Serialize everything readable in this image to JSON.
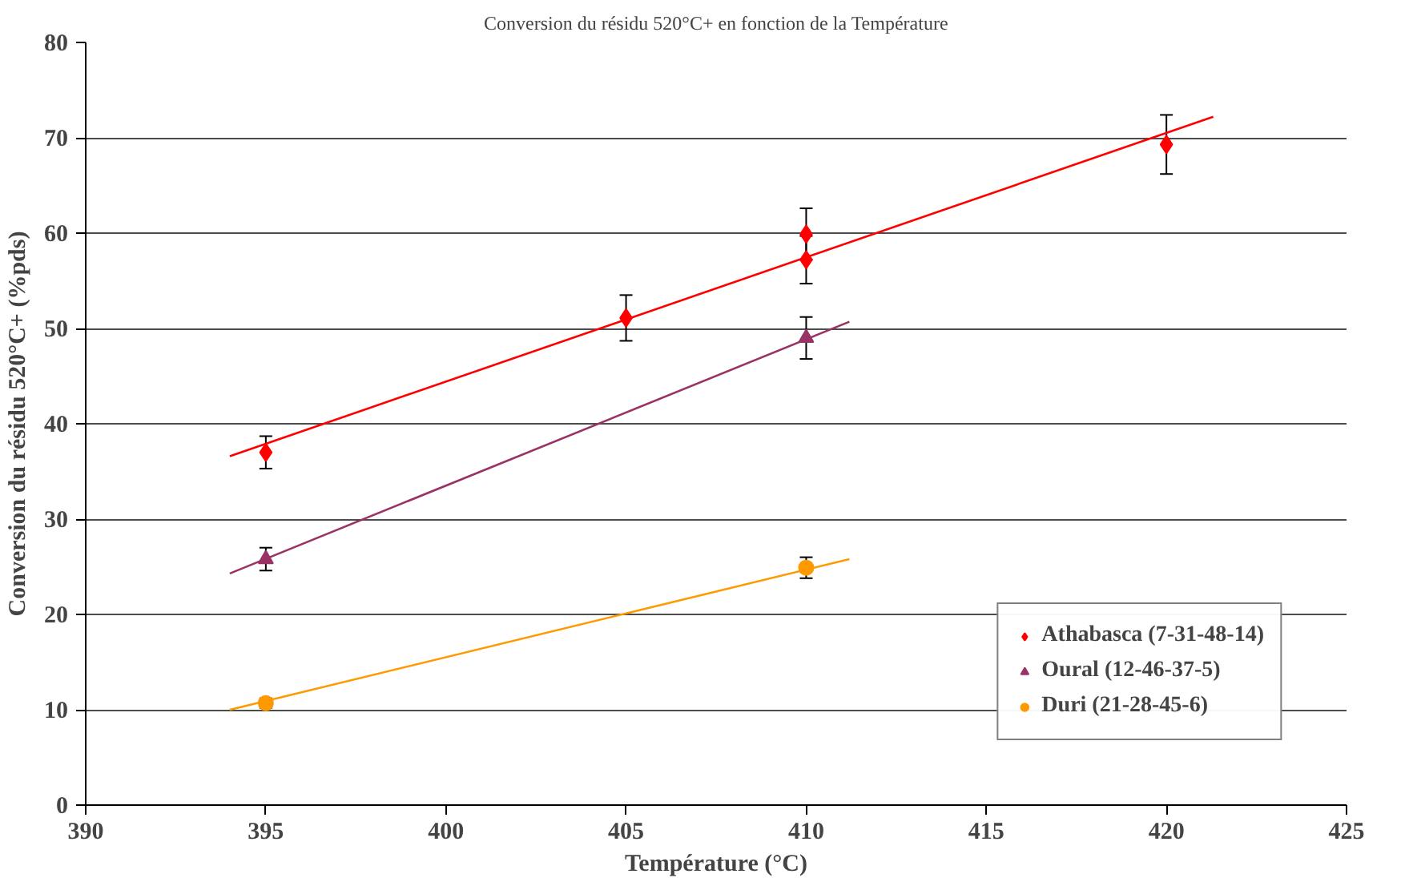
{
  "chart_data": {
    "type": "scatter",
    "title": "Conversion du résidu 520°C+ en fonction de la Température",
    "xlabel": "Température (°C)",
    "ylabel": "Conversion du résidu 520°C+ (%pds)",
    "xlim": [
      390,
      425
    ],
    "xticks": [
      390,
      395,
      400,
      405,
      410,
      415,
      420,
      425
    ],
    "ylim": [
      0,
      80
    ],
    "yticks": [
      0,
      10,
      20,
      30,
      40,
      50,
      60,
      70,
      80
    ],
    "grid": "y",
    "legend": "right",
    "series": [
      {
        "name": "Athabasca (7-31-48-14)",
        "color": "#ff0000",
        "marker": "diamond",
        "x": [
          395,
          405,
          410,
          410,
          420
        ],
        "values": [
          37,
          51.1,
          59.9,
          57.2,
          69.3
        ],
        "errors": [
          1.7,
          2.4,
          2.7,
          2.5,
          3.1
        ]
      },
      {
        "name": "Oural (12-46-37-5)",
        "color": "#993366",
        "marker": "triangle",
        "x": [
          395,
          410
        ],
        "values": [
          25.8,
          49.0
        ],
        "errors": [
          1.2,
          2.2
        ]
      },
      {
        "name": "Duri (21-28-45-6)",
        "color": "#ff9900",
        "marker": "circle",
        "x": [
          395,
          410
        ],
        "values": [
          10.7,
          24.9
        ],
        "errors": [
          0.5,
          1.1
        ]
      },
      {
        "type": "line",
        "color": "#ff0000",
        "x": [
          394,
          421.3
        ],
        "values": [
          36.6,
          72.2
        ]
      },
      {
        "type": "line",
        "color": "#993366",
        "x": [
          394,
          411.2
        ],
        "values": [
          24.3,
          50.7
        ]
      },
      {
        "type": "line",
        "color": "#ff9900",
        "x": [
          394,
          411.2
        ],
        "values": [
          10,
          25.8
        ]
      }
    ]
  }
}
